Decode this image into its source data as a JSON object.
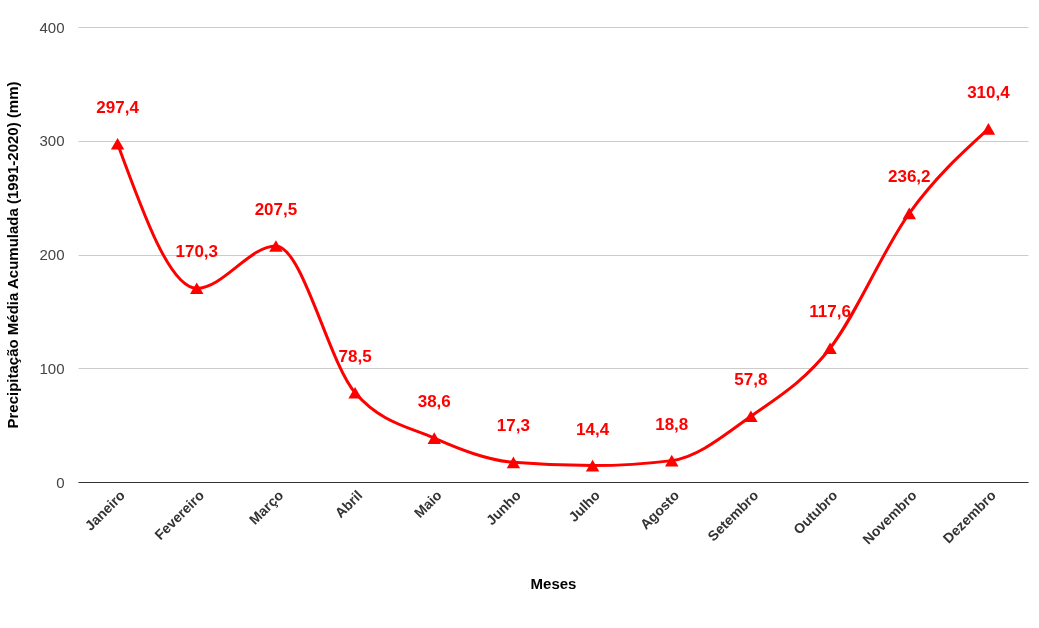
{
  "chart_data": {
    "type": "line",
    "xlabel": "Meses",
    "ylabel": "Precipitação Média Acumulada (1991-2020) (mm)",
    "categories": [
      "Janeiro",
      "Fevereiro",
      "Março",
      "Abril",
      "Maio",
      "Junho",
      "Julho",
      "Agosto",
      "Setembro",
      "Outubro",
      "Novembro",
      "Dezembro"
    ],
    "series": [
      {
        "color": "#ff0000",
        "values": [
          297.4,
          170.3,
          207.5,
          78.5,
          38.6,
          17.3,
          14.4,
          18.8,
          57.8,
          117.6,
          236.2,
          310.4
        ],
        "value_labels": [
          "297,4",
          "170,3",
          "207,5",
          "78,5",
          "38,6",
          "17,3",
          "14,4",
          "18,8",
          "57,8",
          "117,6",
          "236,2",
          "310,4"
        ]
      }
    ],
    "ylim": [
      0,
      400
    ],
    "yticks": [
      0,
      100,
      200,
      300,
      400
    ],
    "grid": "y",
    "marker": "triangle",
    "line_style": "solid"
  }
}
